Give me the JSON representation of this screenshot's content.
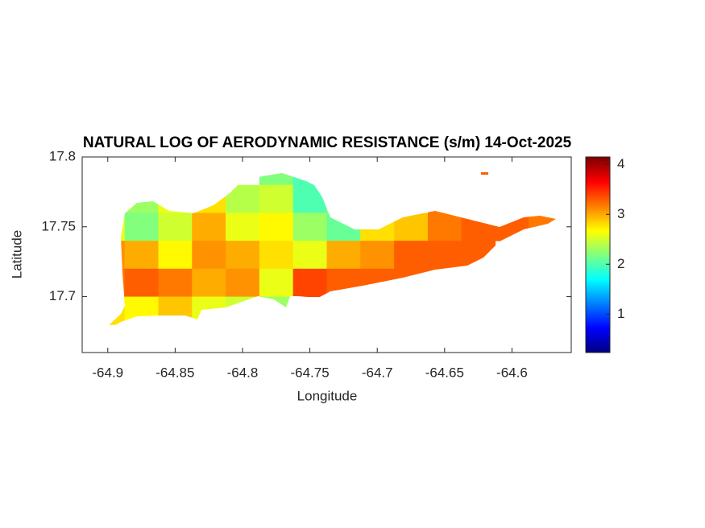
{
  "chart_data": {
    "type": "heatmap",
    "title": "NATURAL LOG OF AERODYNAMIC RESISTANCE (s/m) 14-Oct-2025",
    "xlabel": "Longitude",
    "ylabel": "Latitude",
    "xlim": [
      -64.919,
      -64.556
    ],
    "ylim": [
      17.66,
      17.8
    ],
    "xticks": [
      -64.9,
      -64.85,
      -64.8,
      -64.75,
      -64.7,
      -64.65,
      -64.6
    ],
    "yticks": [
      17.7,
      17.75,
      17.8
    ],
    "colormap": "jet",
    "clim": [
      0.23,
      4.15
    ],
    "cticks": [
      1,
      2,
      3,
      4
    ],
    "x": [
      -64.9,
      -64.875,
      -64.85,
      -64.825,
      -64.8,
      -64.775,
      -64.75,
      -64.725,
      -64.7,
      -64.675,
      -64.65,
      -64.625,
      -64.6,
      -64.575
    ],
    "y": [
      17.79,
      17.77,
      17.75,
      17.73,
      17.71,
      17.69
    ],
    "z": [
      [
        null,
        null,
        null,
        null,
        null,
        2.2,
        2.0,
        null,
        null,
        null,
        null,
        3.3,
        null,
        null
      ],
      [
        null,
        2.3,
        2.6,
        2.8,
        2.4,
        2.5,
        2.0,
        2.3,
        null,
        null,
        3.2,
        3.1,
        null,
        null
      ],
      [
        2.6,
        2.2,
        2.5,
        3.0,
        2.6,
        2.7,
        2.3,
        2.1,
        2.8,
        2.9,
        3.2,
        3.3,
        3.3,
        3.2
      ],
      [
        3.1,
        3.0,
        2.7,
        3.1,
        3.0,
        2.8,
        2.6,
        3.0,
        3.1,
        3.3,
        3.3,
        3.3,
        null,
        null
      ],
      [
        3.2,
        3.3,
        3.2,
        3.0,
        3.1,
        2.6,
        3.4,
        3.3,
        3.3,
        3.3,
        3.3,
        null,
        null,
        null
      ],
      [
        2.8,
        2.7,
        2.9,
        2.6,
        2.5,
        2.3,
        null,
        null,
        null,
        null,
        null,
        null,
        null,
        null
      ]
    ]
  }
}
